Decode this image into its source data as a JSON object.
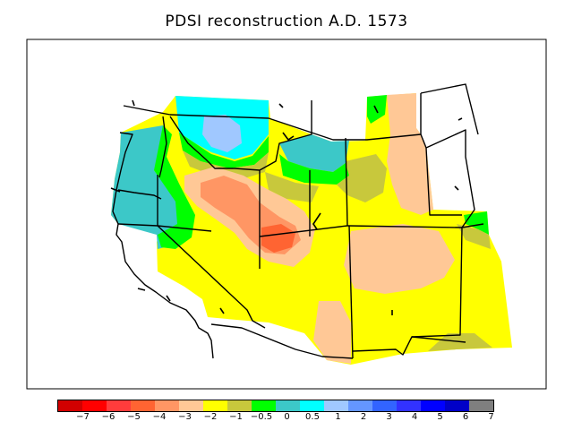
{
  "title": "PDSI reconstruction A.D. 1573",
  "colors": {
    "land_base": "#ffff00",
    "mild_wet": "#c8c83c",
    "wet_1": "#00ff00",
    "wet_2": "#3cc8c8",
    "wet_3": "#00ffff",
    "wet_4": "#a0c8ff",
    "dry_1": "#ffc896",
    "dry_2": "#ff9664",
    "dry_3": "#ff6432",
    "border": "#000000"
  },
  "legend": {
    "colors": [
      "#d20000",
      "#ff0000",
      "#ff3c3c",
      "#ff6432",
      "#ff9664",
      "#ffc896",
      "#ffff00",
      "#c8c83c",
      "#00ff00",
      "#3cc8c8",
      "#00ffff",
      "#a0c8ff",
      "#6496ff",
      "#3264ff",
      "#3232ff",
      "#0000ff",
      "#0000c8",
      "#7f7f7f"
    ],
    "labels": [
      "−7",
      "−6",
      "−5",
      "−4",
      "−3",
      "−2",
      "−1",
      "−0.5",
      "0",
      "0.5",
      "1",
      "2",
      "3",
      "4",
      "5",
      "6",
      "7"
    ]
  }
}
